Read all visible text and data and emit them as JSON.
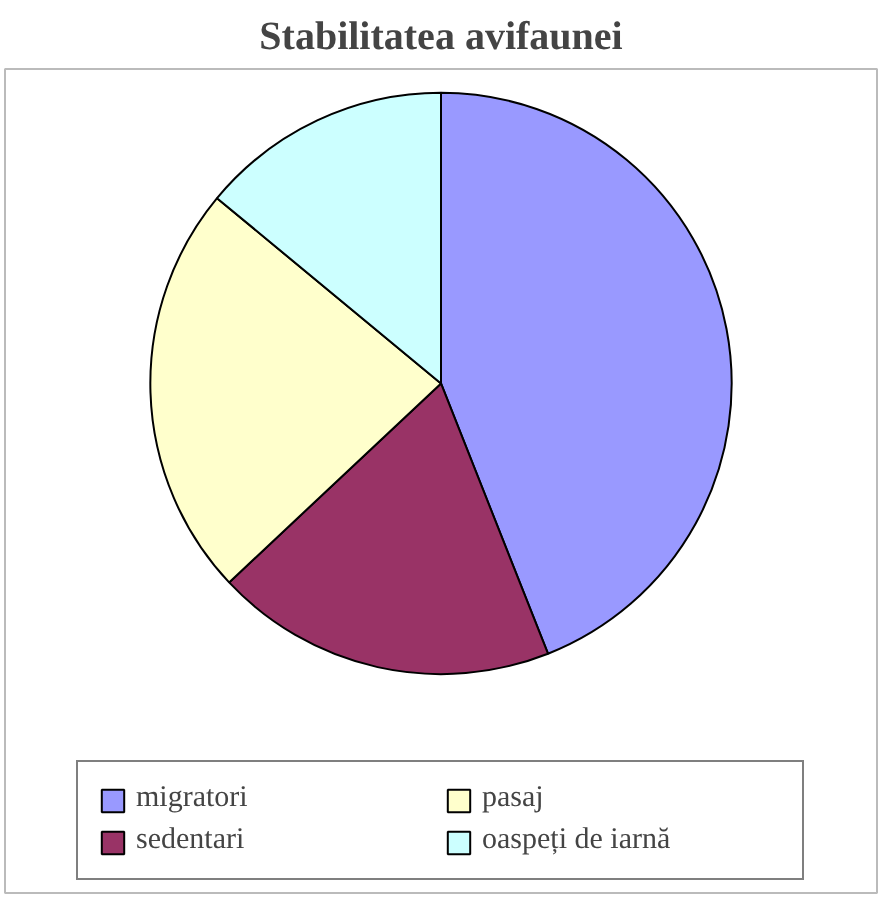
{
  "chart_data": {
    "type": "pie",
    "title": "Stabilitatea avifaunei",
    "categories": [
      "migratori",
      "sedentari",
      "pasaj",
      "oaspeți de iarnă"
    ],
    "values": [
      44,
      19,
      23,
      14
    ],
    "colors": [
      "#9999ff",
      "#993366",
      "#ffffcc",
      "#ccffff"
    ],
    "legend": "bottom"
  }
}
